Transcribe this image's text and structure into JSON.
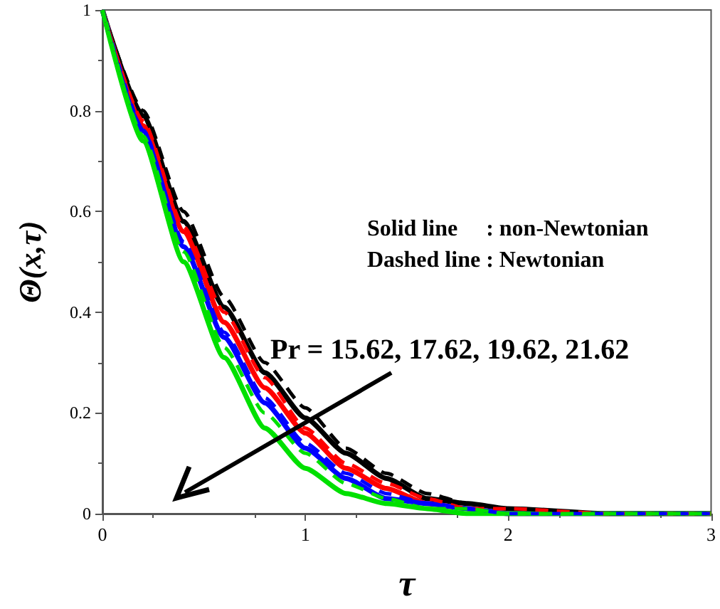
{
  "chart_data": {
    "type": "line",
    "xlabel": "τ",
    "ylabel": "Θ(x,τ)",
    "x": [
      0,
      0.2,
      0.4,
      0.6,
      0.8,
      1,
      1.2,
      1.4,
      1.6,
      1.8,
      2,
      2.5,
      3
    ],
    "xlim": [
      0,
      3
    ],
    "xticks": [
      0,
      1,
      2,
      3
    ],
    "ylim": [
      0,
      1
    ],
    "yticks": [
      0,
      0.2,
      0.4,
      0.6,
      0.8,
      1
    ],
    "grid": false,
    "marker": "none",
    "annotations": [
      "Solid line     : non-Newtonian",
      "Dashed line : Newtonian",
      "Pr = 15.62, 17.62, 19.62, 21.62"
    ],
    "series": [
      {
        "color": "#000000",
        "line_style": "solid",
        "values": [
          1,
          0.79,
          0.58,
          0.41,
          0.28,
          0.19,
          0.12,
          0.07,
          0.03,
          0.02,
          0.01,
          0,
          0
        ]
      },
      {
        "color": "#ff0000",
        "line_style": "solid",
        "values": [
          1,
          0.77,
          0.56,
          0.38,
          0.25,
          0.16,
          0.09,
          0.05,
          0.02,
          0.01,
          0,
          0,
          0
        ]
      },
      {
        "color": "#0000ff",
        "line_style": "solid",
        "values": [
          1,
          0.76,
          0.53,
          0.35,
          0.22,
          0.13,
          0.07,
          0.03,
          0.02,
          0.01,
          0,
          0,
          0
        ]
      },
      {
        "color": "#00e000",
        "line_style": "solid",
        "values": [
          1,
          0.74,
          0.5,
          0.31,
          0.17,
          0.09,
          0.04,
          0.02,
          0.01,
          0,
          0,
          0,
          0
        ]
      },
      {
        "color": "#000000",
        "line_style": "dashed",
        "values": [
          1,
          0.8,
          0.6,
          0.43,
          0.3,
          0.21,
          0.13,
          0.08,
          0.04,
          0.02,
          0.01,
          0,
          0
        ]
      },
      {
        "color": "#ff0000",
        "line_style": "dashed",
        "values": [
          1,
          0.78,
          0.57,
          0.4,
          0.27,
          0.17,
          0.1,
          0.06,
          0.03,
          0.01,
          0.01,
          0,
          0
        ]
      },
      {
        "color": "#0000ff",
        "line_style": "dashed",
        "values": [
          1,
          0.76,
          0.54,
          0.36,
          0.23,
          0.14,
          0.08,
          0.04,
          0.02,
          0.01,
          0,
          0,
          0
        ]
      },
      {
        "color": "#00e000",
        "line_style": "dashed",
        "values": [
          1,
          0.75,
          0.52,
          0.33,
          0.2,
          0.12,
          0.06,
          0.03,
          0.01,
          0.01,
          0,
          0,
          0
        ]
      }
    ]
  }
}
